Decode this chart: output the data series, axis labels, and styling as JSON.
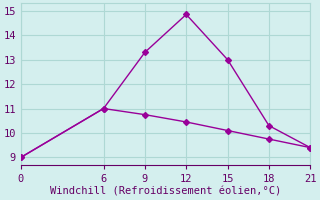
{
  "line1_x": [
    0,
    6,
    9,
    12,
    15,
    18,
    21
  ],
  "line1_y": [
    9,
    11,
    13.3,
    14.85,
    13.0,
    10.3,
    9.4
  ],
  "line2_x": [
    0,
    6,
    9,
    12,
    15,
    18,
    21
  ],
  "line2_y": [
    9,
    11,
    10.75,
    10.45,
    10.1,
    9.75,
    9.4
  ],
  "line_color": "#990099",
  "bg_color": "#d4efee",
  "grid_color": "#aed8d4",
  "xlabel": "Windchill (Refroidissement éolien,°C)",
  "xlabel_color": "#660066",
  "tick_color": "#660066",
  "ylim": [
    8.7,
    15.3
  ],
  "xlim": [
    0,
    21
  ],
  "yticks": [
    9,
    10,
    11,
    12,
    13,
    14,
    15
  ],
  "xticks": [
    0,
    6,
    9,
    12,
    15,
    18,
    21
  ],
  "marker": "D",
  "markersize": 3,
  "linewidth": 1.0,
  "xlabel_fontsize": 7.5,
  "tick_fontsize": 7.5
}
